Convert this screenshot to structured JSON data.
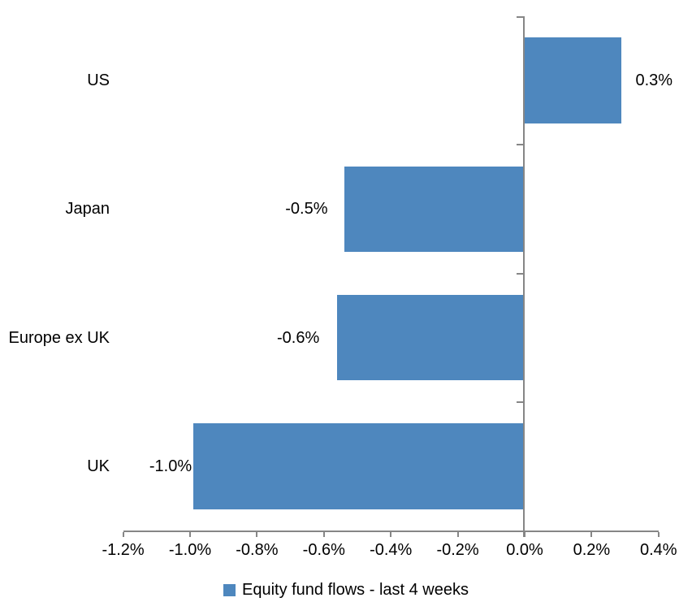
{
  "chart_data": {
    "type": "bar",
    "orientation": "horizontal",
    "categories": [
      "US",
      "Japan",
      "Europe ex UK",
      "UK"
    ],
    "series": [
      {
        "name": "Equity fund flows - last 4 weeks",
        "values": [
          0.3,
          -0.5,
          -0.6,
          -1.0
        ],
        "values_precise": [
          0.29,
          -0.54,
          -0.56,
          -0.99
        ],
        "data_labels": [
          "0.3%",
          "-0.5%",
          "-0.6%",
          "-1.0%"
        ]
      }
    ],
    "x_axis": {
      "min": -1.2,
      "max": 0.4,
      "tick_step": 0.2,
      "tick_values": [
        -1.2,
        -1.0,
        -0.8,
        -0.6,
        -0.4,
        -0.2,
        0.0,
        0.2,
        0.4
      ],
      "tick_labels": [
        "-1.2%",
        "-1.0%",
        "-0.8%",
        "-0.6%",
        "-0.4%",
        "-0.2%",
        "0.0%",
        "0.2%",
        "0.4%"
      ]
    },
    "legend": {
      "position": "bottom",
      "label": "Equity fund flows - last 4 weeks"
    },
    "colors": {
      "bar": "#4E87BE",
      "axis": "#868686",
      "text": "#000000",
      "background": "#FFFFFF"
    },
    "grid": "off",
    "data_labels_position": "outside-end"
  }
}
